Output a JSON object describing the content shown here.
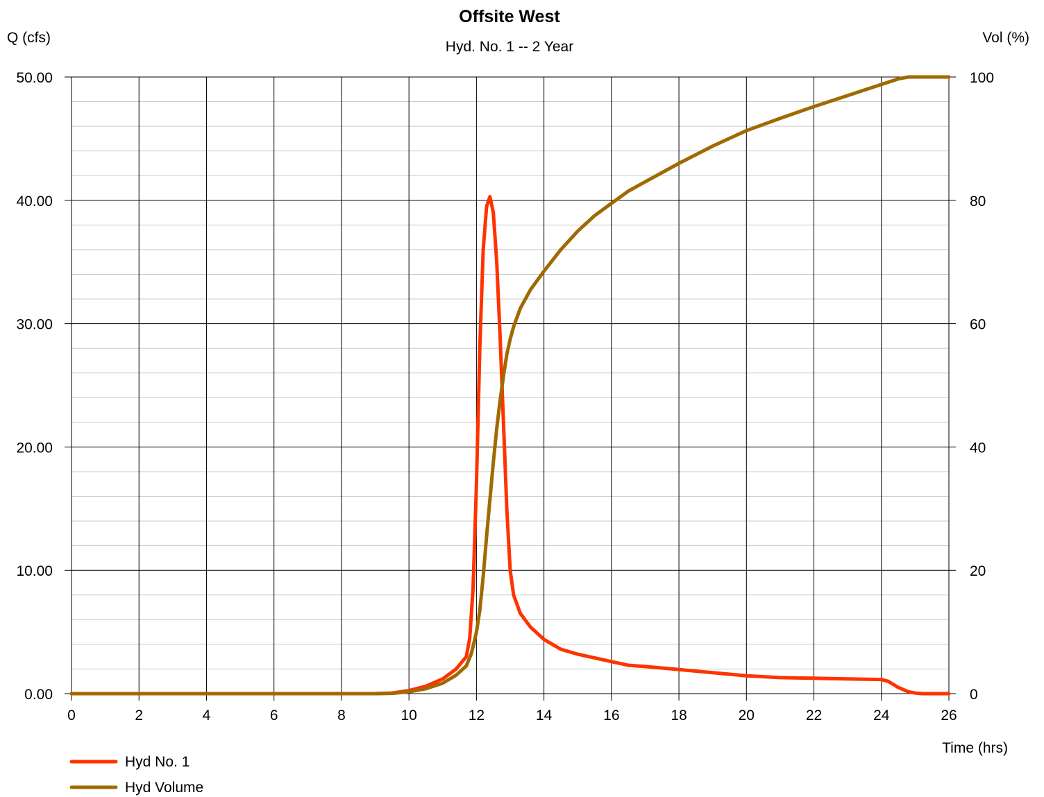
{
  "chart_data": {
    "type": "line",
    "title": "Offsite West",
    "subtitle": "Hyd. No. 1 -- 2 Year",
    "xlabel": "Time (hrs)",
    "ylabel": "Q (cfs)",
    "y2label": "Vol (%)",
    "xlim": [
      0,
      26
    ],
    "ylim": [
      0,
      50
    ],
    "y2lim": [
      0,
      100
    ],
    "x_ticks": [
      "0",
      "2",
      "4",
      "6",
      "8",
      "10",
      "12",
      "14",
      "16",
      "18",
      "20",
      "22",
      "24",
      "26"
    ],
    "y_ticks": [
      "0.00",
      "10.00",
      "20.00",
      "30.00",
      "40.00",
      "50.00"
    ],
    "y2_ticks": [
      "0",
      "20",
      "40",
      "60",
      "80",
      "100"
    ],
    "grid": true,
    "legend_position": "bottom-left",
    "series": [
      {
        "name": "Hyd No. 1",
        "color": "#ff3300",
        "axis": "left",
        "x": [
          0,
          9.0,
          9.5,
          10.0,
          10.5,
          11.0,
          11.4,
          11.7,
          11.8,
          11.9,
          12.0,
          12.1,
          12.2,
          12.3,
          12.4,
          12.5,
          12.6,
          12.7,
          12.8,
          12.9,
          13.0,
          13.1,
          13.3,
          13.6,
          14.0,
          14.5,
          15.0,
          15.5,
          16.0,
          16.5,
          17.0,
          18.0,
          19.0,
          20.0,
          21.0,
          22.0,
          23.0,
          24.0,
          24.2,
          24.5,
          24.8,
          25.0,
          25.2,
          26.0
        ],
        "values": [
          0,
          0,
          0.05,
          0.25,
          0.6,
          1.2,
          2.0,
          3.0,
          4.5,
          8.5,
          17.0,
          28.0,
          36.0,
          39.5,
          40.3,
          39.0,
          35.0,
          29.0,
          22.0,
          15.0,
          10.0,
          8.0,
          6.5,
          5.4,
          4.4,
          3.6,
          3.2,
          2.9,
          2.6,
          2.3,
          2.2,
          1.95,
          1.7,
          1.45,
          1.3,
          1.25,
          1.2,
          1.15,
          1.0,
          0.5,
          0.15,
          0.05,
          0,
          0
        ]
      },
      {
        "name": "Hyd Volume",
        "color": "#a06a00",
        "axis": "right",
        "x": [
          0,
          9.0,
          9.5,
          10.0,
          10.5,
          11.0,
          11.4,
          11.7,
          11.85,
          12.0,
          12.1,
          12.2,
          12.3,
          12.4,
          12.5,
          12.6,
          12.7,
          12.8,
          12.9,
          13.0,
          13.1,
          13.3,
          13.6,
          14.0,
          14.5,
          15.0,
          15.5,
          16.0,
          16.5,
          17.0,
          18.0,
          19.0,
          20.0,
          21.0,
          22.0,
          23.0,
          24.0,
          24.5,
          24.8,
          25.0,
          25.5,
          26.0
        ],
        "values": [
          0,
          0,
          0.05,
          0.3,
          0.8,
          1.7,
          3.0,
          4.5,
          6.5,
          10.0,
          13.5,
          19.0,
          25.5,
          31.5,
          37.5,
          43.0,
          47.5,
          51.5,
          55.0,
          57.5,
          59.5,
          62.5,
          65.5,
          68.5,
          72.0,
          75.0,
          77.5,
          79.5,
          81.5,
          83.0,
          86.0,
          88.8,
          91.3,
          93.3,
          95.2,
          97.0,
          98.8,
          99.7,
          100,
          100,
          100,
          100
        ]
      }
    ]
  }
}
